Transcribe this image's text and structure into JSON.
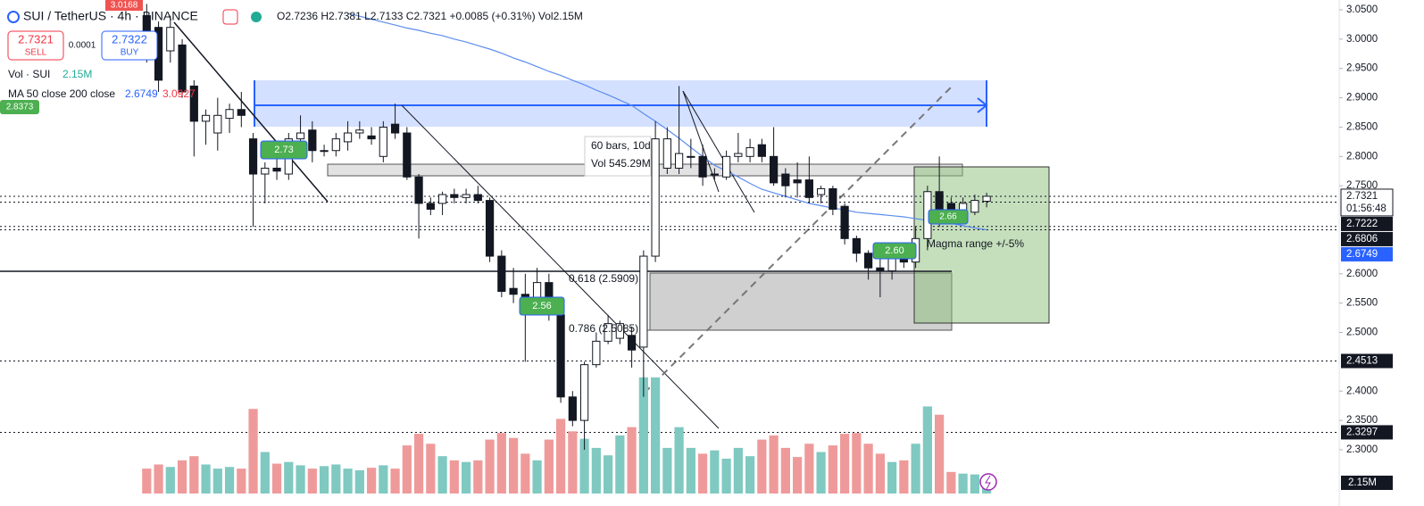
{
  "header": {
    "symbol": "SUI / TetherUS · 4h · BINANCE",
    "ohlc": "O2.7236 H2.7381 L2.7133 C2.7321 +0.0085 (+0.31%) Vol2.15M",
    "sell_price": "2.7321",
    "sell": "SELL",
    "spread": "0.0001",
    "buy_price": "2.7322",
    "buy": "BUY",
    "vol_legend": "Vol · SUI",
    "vol_value": "2.15M",
    "ma_legend": "MA 50 close 200 close",
    "ma50_value": "2.6749",
    "ma200_value": "3.0927"
  },
  "annotations": {
    "bars": "60 bars, 10d",
    "vol": "Vol 545.29M",
    "fib618": "0.618 (2.5909)",
    "fib786": "0.786 (2.5085)",
    "magma": "Magma range +/-5%",
    "tag_top": "3.0168",
    "tag_left": "2.8373",
    "pill1": "2.73",
    "pill2": "2.56",
    "pill3": "2.60",
    "pill4": "2.66"
  },
  "chart_data": {
    "type": "candlestick",
    "open": [
      3.04,
      3.02,
      2.98,
      2.99,
      2.92,
      2.86,
      2.84,
      2.865,
      2.88,
      2.83,
      2.77,
      2.78,
      2.77,
      2.83,
      2.845,
      2.81,
      2.81,
      2.825,
      2.84,
      2.835,
      2.8,
      2.855,
      2.84,
      2.765,
      2.72,
      2.72,
      2.735,
      2.73,
      2.735,
      2.725,
      2.63,
      2.575,
      2.565,
      2.56,
      2.585,
      2.53,
      2.39,
      2.35,
      2.445,
      2.485,
      2.49,
      2.495,
      2.475,
      2.63,
      2.78,
      2.78,
      2.8,
      2.8,
      2.77,
      2.765,
      2.8,
      2.8,
      2.82,
      2.8,
      2.77,
      2.76,
      2.76,
      2.735,
      2.745,
      2.715,
      2.66,
      2.635,
      2.61,
      2.605,
      2.64,
      2.62,
      2.66,
      2.74,
      2.72,
      2.705,
      2.705,
      2.7236
    ],
    "high": [
      3.06,
      3.03,
      3.04,
      3.0,
      2.93,
      2.88,
      2.9,
      2.89,
      2.91,
      2.84,
      2.79,
      2.8,
      2.84,
      2.87,
      2.86,
      2.82,
      2.84,
      2.86,
      2.86,
      2.85,
      2.86,
      2.89,
      2.85,
      2.77,
      2.73,
      2.74,
      2.745,
      2.745,
      2.75,
      2.73,
      2.64,
      2.61,
      2.6,
      2.61,
      2.6,
      2.54,
      2.4,
      2.45,
      2.5,
      2.53,
      2.52,
      2.51,
      2.64,
      2.86,
      2.85,
      2.92,
      2.83,
      2.82,
      2.78,
      2.81,
      2.84,
      2.83,
      2.83,
      2.85,
      2.78,
      2.79,
      2.8,
      2.75,
      2.75,
      2.72,
      2.665,
      2.64,
      2.63,
      2.65,
      2.65,
      2.68,
      2.75,
      2.8,
      2.73,
      2.73,
      2.735,
      2.7381
    ],
    "low": [
      2.96,
      2.91,
      2.96,
      2.9,
      2.8,
      2.82,
      2.81,
      2.84,
      2.85,
      2.68,
      2.72,
      2.76,
      2.76,
      2.82,
      2.79,
      2.8,
      2.8,
      2.81,
      2.83,
      2.82,
      2.79,
      2.83,
      2.76,
      2.66,
      2.7,
      2.7,
      2.72,
      2.72,
      2.72,
      2.62,
      2.56,
      2.55,
      2.45,
      2.55,
      2.52,
      2.38,
      2.34,
      2.3,
      2.44,
      2.48,
      2.48,
      2.44,
      2.39,
      2.62,
      2.77,
      2.77,
      2.78,
      2.75,
      2.76,
      2.76,
      2.79,
      2.79,
      2.79,
      2.75,
      2.73,
      2.73,
      2.72,
      2.72,
      2.7,
      2.65,
      2.62,
      2.59,
      2.56,
      2.59,
      2.61,
      2.61,
      2.64,
      2.68,
      2.69,
      2.69,
      2.7,
      2.7133
    ],
    "close": [
      2.99,
      2.93,
      3.02,
      2.91,
      2.86,
      2.87,
      2.87,
      2.88,
      2.87,
      2.77,
      2.78,
      2.775,
      2.83,
      2.84,
      2.81,
      2.81,
      2.83,
      2.84,
      2.845,
      2.83,
      2.85,
      2.84,
      2.765,
      2.72,
      2.71,
      2.735,
      2.73,
      2.735,
      2.725,
      2.63,
      2.57,
      2.565,
      2.55,
      2.585,
      2.53,
      2.39,
      2.35,
      2.445,
      2.485,
      2.515,
      2.515,
      2.47,
      2.63,
      2.83,
      2.83,
      2.805,
      2.8,
      2.765,
      2.77,
      2.8,
      2.805,
      2.815,
      2.8,
      2.755,
      2.75,
      2.755,
      2.73,
      2.745,
      2.71,
      2.66,
      2.635,
      2.61,
      2.605,
      2.64,
      2.62,
      2.66,
      2.74,
      2.685,
      2.7,
      2.72,
      2.725,
      2.7321
    ],
    "volume": [
      3,
      3.5,
      3.2,
      4,
      4.5,
      3.5,
      3,
      3.2,
      3,
      10.2,
      5,
      3.6,
      3.8,
      3.4,
      3,
      3.3,
      3.5,
      3,
      2.8,
      3.1,
      3.4,
      3,
      5.8,
      7.2,
      6,
      4.5,
      4,
      3.8,
      4,
      6.5,
      7.3,
      6.7,
      4.8,
      4,
      6.5,
      9,
      7.5,
      6.6,
      5.5,
      4.6,
      7,
      8,
      14,
      14,
      5.5,
      8,
      5.5,
      4.8,
      5.2,
      4.2,
      5.5,
      4.5,
      6.5,
      7,
      5.5,
      4.4,
      6,
      5,
      5.8,
      7.2,
      7.3,
      6,
      4.8,
      3.8,
      4,
      6,
      10.5,
      9.5,
      2.6,
      2.4,
      2.3,
      2.15
    ],
    "ma50": [
      null,
      null,
      null,
      null,
      null,
      null,
      null,
      null,
      null,
      null,
      null,
      null,
      null,
      null,
      null,
      null,
      null,
      3.044,
      3.039,
      3.034,
      3.029,
      3.024,
      3.019,
      3.015,
      3.01,
      3.006,
      3.0,
      2.995,
      2.989,
      2.983,
      2.976,
      2.968,
      2.961,
      2.953,
      2.945,
      2.938,
      2.93,
      2.922,
      2.913,
      2.905,
      2.896,
      2.887,
      2.873,
      2.86,
      2.846,
      2.831,
      2.815,
      2.8,
      2.785,
      2.775,
      2.765,
      2.754,
      2.744,
      2.738,
      2.732,
      2.726,
      2.72,
      2.716,
      2.712,
      2.709,
      2.705,
      2.703,
      2.701,
      2.699,
      2.697,
      2.694,
      2.691,
      2.689,
      2.686,
      2.682,
      2.678,
      2.6749
    ],
    "ma_color": "#5b8def",
    "up_color": "#ffffff",
    "down_color": "#131722",
    "vol_up_color": "#7fc9c1",
    "vol_down_color": "#ef9a9a",
    "xlim": [
      -12.4,
      100.8
    ],
    "ylim": [
      2.2254,
      3.0667
    ],
    "vol_ylim": [
      0,
      59.5
    ],
    "yticks": [
      {
        "value": 3.05,
        "label": "3.0500"
      },
      {
        "value": 3.0,
        "label": "3.0000"
      },
      {
        "value": 2.95,
        "label": "2.9500"
      },
      {
        "value": 2.9,
        "label": "2.9000"
      },
      {
        "value": 2.85,
        "label": "2.8500"
      },
      {
        "value": 2.8,
        "label": "2.8000"
      },
      {
        "value": 2.75,
        "label": "2.7500"
      },
      {
        "value": 2.6,
        "label": "2.6000"
      },
      {
        "value": 2.55,
        "label": "2.5500"
      },
      {
        "value": 2.5,
        "label": "2.5000"
      },
      {
        "value": 2.4,
        "label": "2.4000"
      },
      {
        "value": 2.35,
        "label": "2.3500"
      },
      {
        "value": 2.3,
        "label": "2.3000"
      }
    ],
    "price_lines": [
      {
        "value": 2.7321,
        "label": "2.7321",
        "countdown": "01:56:48"
      },
      {
        "value": 2.7222,
        "label": "2.7222"
      },
      {
        "value": 2.6806,
        "label": "2.6806"
      },
      {
        "value": 2.6749,
        "label": "2.6749",
        "color": "#2962ff"
      },
      {
        "value": 2.4513,
        "label": "2.4513"
      },
      {
        "value": 2.3297,
        "label": "2.3297"
      }
    ],
    "vol_tag": "2.15M"
  }
}
